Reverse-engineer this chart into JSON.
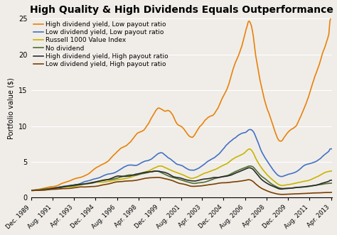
{
  "title": "High Quality & High Dividends Equals Outperformance",
  "ylabel": "Portfolio value ($)",
  "ylim": [
    0,
    25
  ],
  "yticks": [
    0,
    5,
    10,
    15,
    20,
    25
  ],
  "x_tick_labels": [
    "Dec. 1989",
    "Aug. 1991",
    "Apr. 1993",
    "Dec. 1994",
    "Aug. 1996",
    "Apr. 1998",
    "Dec. 1999",
    "Aug. 2001",
    "Apr. 2003",
    "Dec. 2004",
    "Aug. 2006",
    "Apr. 2008",
    "Dec. 2009",
    "Aug. 2011",
    "Apr. 2013"
  ],
  "series": [
    {
      "label": "High dividend yield, Low payout ratio",
      "color": "#E8820A",
      "linewidth": 1.2
    },
    {
      "label": "Low dividend yield, Low payout ratio",
      "color": "#4472C4",
      "linewidth": 1.2
    },
    {
      "label": "Russell 1000 Value Index",
      "color": "#C8B400",
      "linewidth": 1.2
    },
    {
      "label": "No dividend",
      "color": "#4E7030",
      "linewidth": 1.2
    },
    {
      "label": "High dividend yield, High payout ratio",
      "color": "#2A2A2A",
      "linewidth": 1.2
    },
    {
      "label": "Low dividend yield, High payout ratio",
      "color": "#7B3F00",
      "linewidth": 1.2
    }
  ],
  "background_color": "#f0ede8",
  "title_fontsize": 10,
  "legend_fontsize": 6.5,
  "axis_fontsize": 7
}
